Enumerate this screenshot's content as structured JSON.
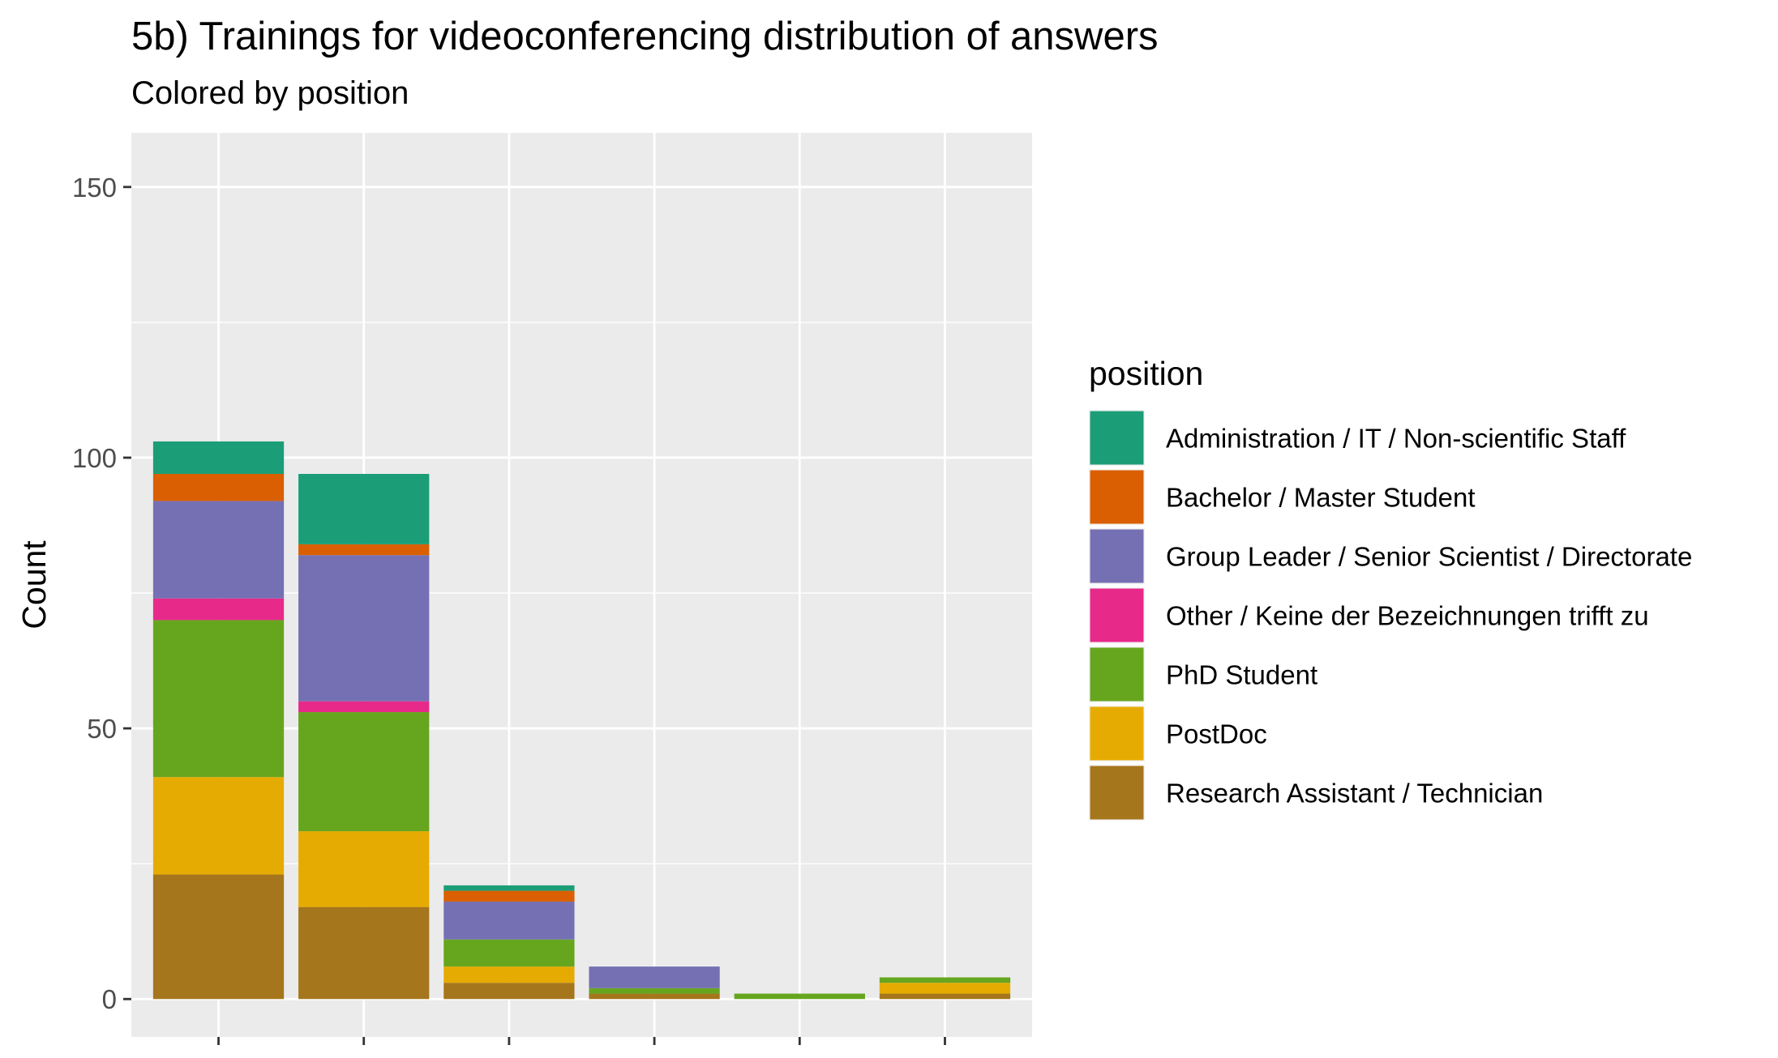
{
  "chart_data": {
    "type": "bar",
    "stacked": true,
    "title": "5b) Trainings for videoconferencing distribution of answers",
    "subtitle": "Colored by  position",
    "xlabel": "",
    "ylabel": "Count",
    "ylim": [
      -7,
      160
    ],
    "yticks": [
      0,
      50,
      100,
      150
    ],
    "grid": true,
    "legend_title": "position",
    "legend_position": "right",
    "categories": [
      "",
      "",
      "",
      "",
      "",
      ""
    ],
    "series": [
      {
        "name": "Research Assistant / Technician",
        "color": "#A6761D",
        "values": [
          23,
          17,
          3,
          1,
          0,
          1
        ]
      },
      {
        "name": "PostDoc",
        "color": "#E6AB02",
        "values": [
          18,
          14,
          3,
          0,
          0,
          2
        ]
      },
      {
        "name": "PhD Student",
        "color": "#66A61E",
        "values": [
          29,
          22,
          5,
          1,
          1,
          1
        ]
      },
      {
        "name": "Other / Keine der Bezeichnungen trifft zu",
        "color": "#E7298A",
        "values": [
          4,
          2,
          0,
          0,
          0,
          0
        ]
      },
      {
        "name": "Group Leader / Senior Scientist / Directorate",
        "color": "#7570B3",
        "values": [
          18,
          27,
          7,
          4,
          0,
          0
        ]
      },
      {
        "name": "Bachelor / Master Student",
        "color": "#D95F02",
        "values": [
          5,
          2,
          2,
          0,
          0,
          0
        ]
      },
      {
        "name": "Administration / IT / Non-scientific Staff",
        "color": "#1B9E77",
        "values": [
          6,
          13,
          1,
          0,
          0,
          0
        ]
      }
    ],
    "legend_order": [
      "Administration / IT / Non-scientific Staff",
      "Bachelor / Master Student",
      "Group Leader / Senior Scientist / Directorate",
      "Other / Keine der Bezeichnungen trifft zu",
      "PhD Student",
      "PostDoc",
      "Research Assistant / Technician"
    ]
  }
}
